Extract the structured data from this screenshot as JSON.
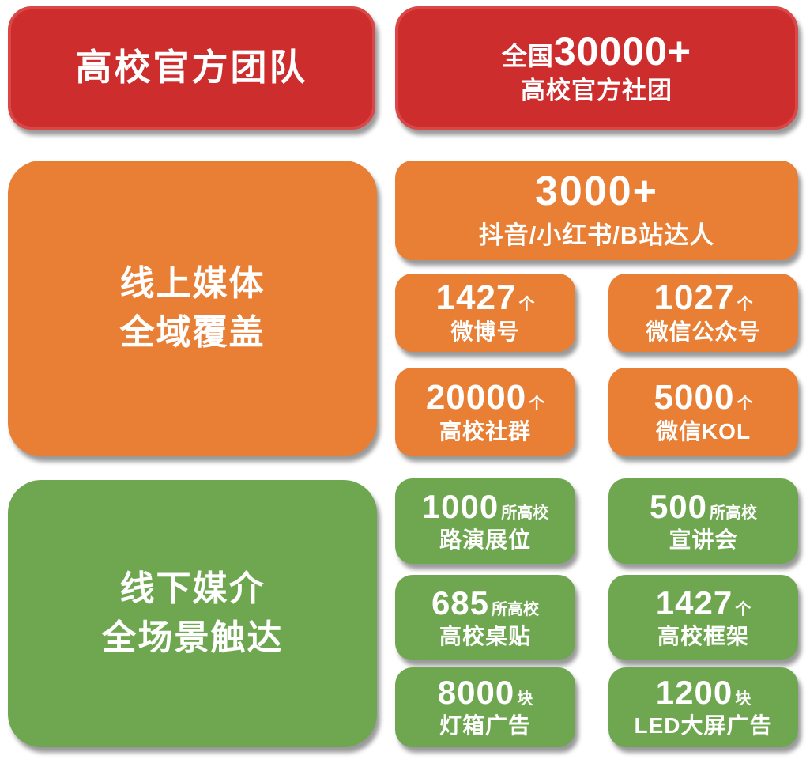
{
  "colors": {
    "red": "#CE2D2D",
    "red_ring": "#D94747",
    "orange": "#E97F35",
    "green": "#6EA74F",
    "text": "#FFFFFF",
    "background": "#FFFFFF"
  },
  "red_section": {
    "title_card": {
      "text": "高校官方团队"
    },
    "stat_card": {
      "prefix": "全国",
      "number": "30000+",
      "label": "高校官方社团"
    }
  },
  "online_section": {
    "title_card": {
      "line1": "线上媒体",
      "line2": "全域覆盖"
    },
    "hero_stat": {
      "number": "3000+",
      "label": "抖音/小红书/B站达人"
    },
    "stats": [
      {
        "number": "1427",
        "unit": "个",
        "label": "微博号"
      },
      {
        "number": "1027",
        "unit": "个",
        "label": "微信公众号"
      },
      {
        "number": "20000",
        "unit": "个",
        "label": "高校社群"
      },
      {
        "number": "5000",
        "unit": "个",
        "label": "微信KOL"
      }
    ]
  },
  "offline_section": {
    "title_card": {
      "line1": "线下媒介",
      "line2": "全场景触达"
    },
    "stats": [
      {
        "number": "1000",
        "unit": "所高校",
        "label": "路演展位"
      },
      {
        "number": "500",
        "unit": "所高校",
        "label": "宣讲会"
      },
      {
        "number": "685",
        "unit": "所高校",
        "label": "高校桌贴"
      },
      {
        "number": "1427",
        "unit": "个",
        "label": "高校框架"
      },
      {
        "number": "8000",
        "unit": "块",
        "label": "灯箱广告"
      },
      {
        "number": "1200",
        "unit": "块",
        "label": "LED大屏广告"
      }
    ]
  }
}
